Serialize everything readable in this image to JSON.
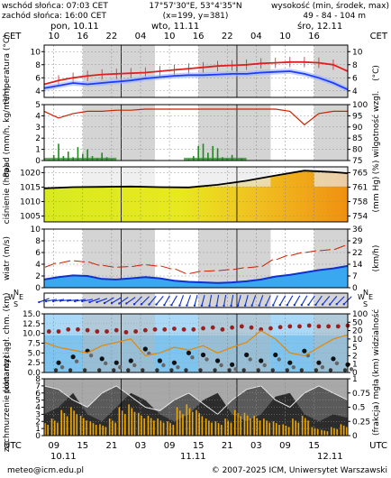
{
  "header": {
    "sunrise": "wschód słońca: 07:03 CET",
    "sunset": "zachód słońca: 16:00 CET",
    "coords": "17°57'30\"E, 53°4'35\"N",
    "grid": "(x=199, y=381)",
    "elevation_label": "wysokość (min, środek, max)",
    "elevation_values": "49 - 84 - 104 m"
  },
  "top_axis": {
    "tz_left": "CET",
    "tz_right": "CET",
    "days": [
      "pon, 10.11",
      "wto, 11.11",
      "śro, 12.11"
    ],
    "hours": [
      "10",
      "16",
      "22",
      "04",
      "10",
      "16",
      "22",
      "04",
      "10",
      "16"
    ]
  },
  "bottom_axis": {
    "tz_left": "UTC",
    "tz_right": "UTC",
    "hours": [
      "09",
      "15",
      "21",
      "03",
      "09",
      "15",
      "21",
      "03",
      "09",
      "15"
    ],
    "days": [
      "10.11",
      "11.11",
      "12.11"
    ]
  },
  "footer": {
    "email": "meteo@icm.edu.pl",
    "copyright": "© 2007-2025 ICM, Uniwersytet Warszawski"
  },
  "colors": {
    "temperature": "#e02020",
    "dewpoint": "#1e3cff",
    "pressure_line": "#000000",
    "precip": "#1c8a1c",
    "humidity": "#cc2200",
    "wind_mean": "#1030d0",
    "gust": "#cc2200",
    "visibility": "#e08a10",
    "fog": "#f0a800",
    "band_gray": "#d4d4d4"
  },
  "chart_data": [
    {
      "type": "line",
      "name": "temperatura",
      "ylabel": "temperatura (°C)",
      "ylabel_right": "(°C)",
      "ylim": [
        3,
        11
      ],
      "yticks": [
        4,
        6,
        8,
        10
      ],
      "x_hours": [
        0,
        3,
        6,
        9,
        12,
        15,
        18,
        21,
        24,
        27,
        30,
        33,
        36,
        39,
        42,
        45,
        48,
        51,
        54,
        57,
        60,
        63
      ],
      "series": [
        {
          "role": "temperature",
          "values": [
            5.0,
            5.6,
            6.0,
            6.3,
            6.5,
            6.6,
            6.7,
            6.8,
            7.0,
            7.2,
            7.4,
            7.6,
            7.8,
            7.9,
            8.0,
            8.2,
            8.3,
            8.4,
            8.4,
            8.3,
            8.0,
            7.0
          ]
        },
        {
          "role": "dewpoint",
          "values": [
            4.4,
            4.8,
            5.2,
            5.0,
            5.2,
            5.4,
            5.6,
            5.9,
            6.1,
            6.3,
            6.4,
            6.4,
            6.5,
            6.6,
            6.6,
            6.8,
            6.9,
            7.0,
            6.6,
            6.0,
            5.2,
            4.2
          ]
        }
      ]
    },
    {
      "type": "bar",
      "name": "opad i wilgotność",
      "ylabel": "opad (mm/h, kg/m²/h)",
      "ylim": [
        0,
        5
      ],
      "yticks": [
        0,
        1,
        2,
        3,
        4,
        5
      ],
      "ylabel_right": "(%) wilgotność wzgl.",
      "ylim_right": [
        75,
        100
      ],
      "yticks_right": [
        75,
        80,
        85,
        90,
        95,
        100
      ],
      "precip": {
        "x_hours": [
          1,
          2,
          3,
          4,
          5,
          6,
          7,
          8,
          9,
          10,
          11,
          12,
          13,
          14,
          30,
          31,
          32,
          33,
          34,
          35,
          36,
          37,
          38,
          39,
          40,
          41
        ],
        "values": [
          0.1,
          0.5,
          1.5,
          0.4,
          0.8,
          0.3,
          1.2,
          0.6,
          1.0,
          0.4,
          0.2,
          0.7,
          0.3,
          0.1,
          0.1,
          0.4,
          1.3,
          1.5,
          0.7,
          1.3,
          1.1,
          0.3,
          0.2,
          0.5,
          0.1,
          0.2
        ]
      },
      "humidity": {
        "x_hours": [
          0,
          3,
          6,
          9,
          12,
          15,
          18,
          21,
          24,
          27,
          30,
          33,
          36,
          39,
          42,
          45,
          48,
          51,
          54,
          57,
          60,
          63
        ],
        "values": [
          97.0,
          94.0,
          96.0,
          97.0,
          97.0,
          97.5,
          97.5,
          98.0,
          98.0,
          98.0,
          98.0,
          98.0,
          98.0,
          98.0,
          98.0,
          98.0,
          98.0,
          97.0,
          91.0,
          96.0,
          97.0,
          97.0
        ]
      }
    },
    {
      "type": "area",
      "name": "ciśnienie",
      "ylabel": "ciśnienie (hPa)",
      "ylim": [
        1003,
        1022
      ],
      "yticks": [
        1005,
        1010,
        1015,
        1020
      ],
      "ylabel_right": "(mm Hg)",
      "yticks_right": [
        "754",
        "758",
        "761",
        "765"
      ],
      "x_hours": [
        0,
        6,
        12,
        18,
        24,
        30,
        36,
        42,
        48,
        54,
        60,
        63
      ],
      "values": [
        1014.6,
        1015.0,
        1015.1,
        1015.2,
        1015.0,
        1014.9,
        1015.8,
        1017.2,
        1019.0,
        1020.7,
        1020.2,
        1019.8
      ]
    },
    {
      "type": "line",
      "name": "wiatr",
      "ylabel": "wiatr (m/s)",
      "ylim": [
        0,
        10
      ],
      "yticks": [
        0,
        2,
        4,
        6,
        8,
        10
      ],
      "ylabel_right": "(km/h)",
      "yticks_right": [
        "0",
        "7",
        "14",
        "22",
        "29",
        "36"
      ],
      "x_hours": [
        0,
        3,
        6,
        9,
        12,
        15,
        18,
        21,
        24,
        27,
        30,
        33,
        36,
        39,
        42,
        45,
        48,
        51,
        54,
        57,
        60,
        63
      ],
      "series": [
        {
          "role": "mean",
          "values": [
            1.4,
            1.8,
            2.1,
            2.0,
            1.5,
            1.4,
            1.6,
            1.8,
            1.6,
            1.2,
            1.0,
            0.9,
            0.8,
            0.9,
            1.1,
            1.4,
            1.9,
            2.2,
            2.6,
            3.0,
            3.3,
            3.7
          ]
        },
        {
          "role": "gust",
          "values": [
            3.5,
            4.2,
            4.6,
            4.4,
            3.8,
            3.5,
            3.6,
            3.9,
            3.7,
            3.2,
            2.4,
            2.8,
            2.9,
            3.1,
            3.4,
            3.6,
            4.8,
            5.5,
            6.0,
            6.3,
            6.5,
            7.2
          ]
        }
      ]
    },
    {
      "type": "scatter",
      "name": "kierunek wiatru",
      "compass": [
        "N",
        "E",
        "S",
        "W"
      ],
      "x_hours": [
        0,
        3,
        6,
        9,
        12,
        15,
        18,
        21,
        24,
        27,
        30,
        33,
        36,
        39,
        42,
        45,
        48,
        51,
        54,
        57,
        60,
        63
      ],
      "direction_deg": [
        70,
        80,
        85,
        80,
        70,
        60,
        55,
        45,
        40,
        30,
        20,
        15,
        10,
        10,
        15,
        20,
        25,
        30,
        30,
        35,
        40,
        45
      ]
    },
    {
      "type": "scatter",
      "name": "pionowa rozciągłość chmur i widzialność",
      "ylabel": "pion. rozciągł. chm. (km)",
      "ylim": [
        0,
        15
      ],
      "yticks": [
        0,
        2.5,
        5.0,
        7.5,
        10.0,
        12.5,
        15.0
      ],
      "ylabel_right": "(km) widzialność",
      "ylim_right": [
        0,
        100
      ],
      "yticks_right": [
        0,
        1,
        2,
        5,
        10,
        20,
        50,
        100
      ],
      "cloud_top_x": [
        1,
        3,
        5,
        7,
        9,
        11,
        13,
        15,
        17,
        19,
        21,
        23,
        25,
        27,
        29,
        31,
        33,
        35,
        37,
        39,
        41,
        43,
        45,
        47,
        49,
        51,
        53,
        55,
        57,
        59,
        61,
        63
      ],
      "cloud_top_km": [
        10.5,
        10.5,
        11,
        11,
        10.8,
        10.5,
        10.5,
        10.8,
        10.3,
        10.5,
        10.8,
        11,
        11,
        11.2,
        11,
        11,
        11.3,
        11.5,
        11,
        11.5,
        11.8,
        11.5,
        11,
        11.3,
        11.6,
        11.8,
        11.8,
        12,
        11.8,
        11.8,
        11.8,
        12
      ],
      "cloud_low_x": [
        3,
        6,
        9,
        12,
        15,
        18,
        21,
        24,
        27,
        30,
        33,
        36,
        39,
        42,
        45,
        48,
        51,
        54,
        57,
        60,
        63
      ],
      "cloud_low_km": [
        2.5,
        4.0,
        5.5,
        3.5,
        2.5,
        3.0,
        6.0,
        3.0,
        2.5,
        5.0,
        4.5,
        3.0,
        2.0,
        4.5,
        3.0,
        4.5,
        2.5,
        5.5,
        2.5,
        3.5,
        2.0
      ],
      "visibility_x": [
        0,
        3,
        6,
        9,
        12,
        15,
        18,
        21,
        24,
        27,
        30,
        33,
        36,
        39,
        42,
        45,
        48,
        51,
        54,
        57,
        60,
        63
      ],
      "visibility_km": [
        8,
        5,
        4,
        3,
        6,
        8,
        10,
        2,
        3,
        5,
        4,
        6,
        3,
        5,
        8,
        20,
        10,
        3,
        2,
        5,
        10,
        15
      ]
    },
    {
      "type": "area",
      "name": "zachmurzenie i mgła",
      "ylabel": "zachmurzenie (oktanty)",
      "ylim": [
        0,
        8
      ],
      "yticks": [
        0,
        1,
        2,
        3,
        4,
        5,
        6,
        7,
        8
      ],
      "ylabel_right": "(frakcja) mgła",
      "ylim_right": [
        0,
        1
      ],
      "yticks_right": [
        "0",
        "0.25",
        "0.5",
        "0.75",
        "1"
      ],
      "x_hours": [
        0,
        3,
        6,
        9,
        12,
        15,
        18,
        21,
        24,
        27,
        30,
        33,
        36,
        39,
        42,
        45,
        48,
        51,
        54,
        57,
        60,
        63
      ],
      "total": [
        8,
        8,
        8,
        8,
        8,
        8,
        8,
        8,
        8,
        8,
        8,
        8,
        8,
        8,
        8,
        8,
        8,
        8,
        8,
        8,
        8,
        8
      ],
      "mid": [
        7.0,
        6.5,
        5.0,
        4.0,
        6.0,
        7.0,
        5.5,
        4.0,
        3.5,
        5.0,
        6.0,
        4.5,
        3.0,
        5.0,
        6.5,
        7.0,
        5.0,
        4.0,
        6.0,
        7.0,
        6.0,
        5.0
      ],
      "low": [
        3.0,
        4.0,
        6.0,
        3.0,
        2.0,
        4.0,
        6.0,
        5.0,
        3.0,
        2.0,
        3.0,
        5.0,
        6.0,
        3.0,
        2.0,
        3.0,
        5.5,
        6.0,
        3.0,
        2.0,
        3.0,
        2.5
      ],
      "fog_x": [
        0,
        2,
        4,
        6,
        8,
        10,
        12,
        14,
        16,
        18,
        20,
        22,
        24,
        26,
        28,
        30,
        32,
        34,
        36,
        38,
        40,
        42,
        44,
        46,
        48,
        50,
        52,
        54,
        56,
        58,
        60,
        62
      ],
      "fog_fraction": [
        0.25,
        0.3,
        0.45,
        0.5,
        0.35,
        0.25,
        0.2,
        0.3,
        0.5,
        0.55,
        0.4,
        0.35,
        0.3,
        0.25,
        0.5,
        0.55,
        0.45,
        0.3,
        0.25,
        0.3,
        0.45,
        0.4,
        0.35,
        0.3,
        0.25,
        0.2,
        0.3,
        0.35,
        0.15,
        0.1,
        0.15,
        0.2
      ]
    }
  ]
}
